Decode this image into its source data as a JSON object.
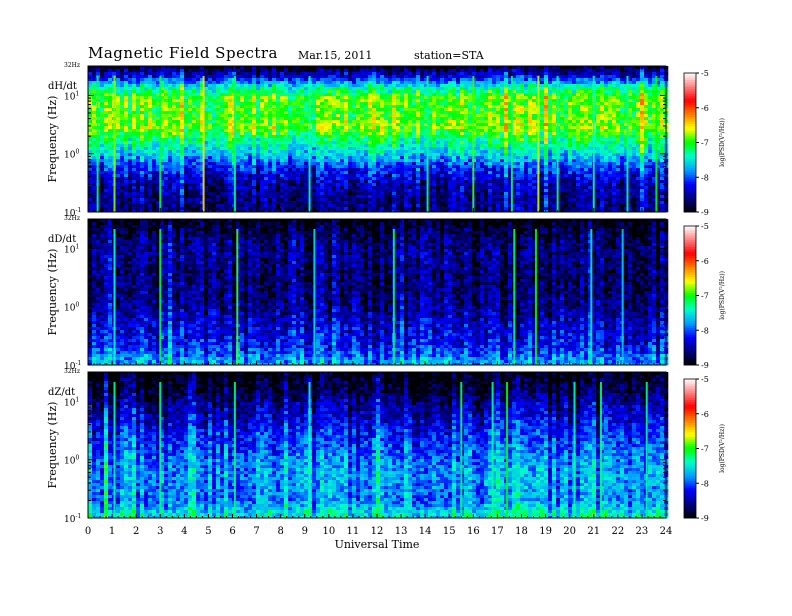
{
  "chart_data": {
    "type": "heatmap",
    "title": "Magnetic Field Spectra",
    "date": "Mar.15, 2011",
    "station": "station=STA",
    "xlabel": "Universal Time",
    "x_ticks": [
      "0",
      "1",
      "2",
      "3",
      "4",
      "5",
      "6",
      "7",
      "8",
      "9",
      "10",
      "11",
      "12",
      "13",
      "14",
      "15",
      "16",
      "17",
      "18",
      "19",
      "20",
      "21",
      "22",
      "23",
      "24"
    ],
    "xlim": [
      0,
      24
    ],
    "ylabel": "Frequency (Hz)",
    "y_scale": "log",
    "ylim": [
      0.1,
      32
    ],
    "y_top_label": "32Hz",
    "y_ticks": [
      {
        "value": 0.1,
        "base": "10",
        "exp": "-1"
      },
      {
        "value": 1,
        "base": "10",
        "exp": "0"
      },
      {
        "value": 10,
        "base": "10",
        "exp": "1"
      }
    ],
    "colorbar": {
      "label": "log(PSD(V²/Hz))",
      "ticks": [
        "-5",
        "-6",
        "-7",
        "-8",
        "-9"
      ],
      "range": [
        -9,
        -5
      ],
      "colors": [
        "#000000",
        "#000080",
        "#0000ff",
        "#00a0ff",
        "#00ffc8",
        "#00ff00",
        "#ffff00",
        "#ff8000",
        "#ff0000",
        "#ff8080",
        "#ffffff"
      ]
    },
    "panels": [
      {
        "name": "dH/dt",
        "bands": [
          {
            "f": 30,
            "level": -8.8
          },
          {
            "f": 20,
            "level": -8.2
          },
          {
            "f": 14,
            "level": -7.4
          },
          {
            "f": 9,
            "level": -6.9
          },
          {
            "f": 5,
            "level": -7.0
          },
          {
            "f": 3,
            "level": -6.8
          },
          {
            "f": 1.8,
            "level": -7.2
          },
          {
            "f": 1,
            "level": -7.6
          },
          {
            "f": 0.6,
            "level": -8.1
          },
          {
            "f": 0.3,
            "level": -8.5
          },
          {
            "f": 0.12,
            "level": -8.6
          }
        ],
        "events": [
          {
            "t": 0.4,
            "level": -7.2
          },
          {
            "t": 1.1,
            "level": -6.8
          },
          {
            "t": 3.0,
            "level": -7.1
          },
          {
            "t": 4.8,
            "level": -6.5
          },
          {
            "t": 6.1,
            "level": -7.2
          },
          {
            "t": 9.2,
            "level": -7.4
          },
          {
            "t": 14.1,
            "level": -7.3
          },
          {
            "t": 16.0,
            "level": -6.9
          },
          {
            "t": 17.6,
            "level": -7.2
          },
          {
            "t": 18.7,
            "level": -6.7
          },
          {
            "t": 19.5,
            "level": -7.3
          },
          {
            "t": 21.0,
            "level": -7.4
          },
          {
            "t": 22.4,
            "level": -7.3
          },
          {
            "t": 23.6,
            "level": -7.0
          }
        ]
      },
      {
        "name": "dD/dt",
        "bands": [
          {
            "f": 30,
            "level": -9.0
          },
          {
            "f": 15,
            "level": -8.7
          },
          {
            "f": 8,
            "level": -8.6
          },
          {
            "f": 3,
            "level": -8.7
          },
          {
            "f": 1,
            "level": -8.6
          },
          {
            "f": 0.5,
            "level": -8.4
          },
          {
            "f": 0.2,
            "level": -8.2
          },
          {
            "f": 0.12,
            "level": -7.8
          }
        ],
        "events": [
          {
            "t": 1.1,
            "level": -7.4
          },
          {
            "t": 3.0,
            "level": -7.1
          },
          {
            "t": 6.2,
            "level": -6.9
          },
          {
            "t": 9.4,
            "level": -7.5
          },
          {
            "t": 12.7,
            "level": -7.2
          },
          {
            "t": 17.7,
            "level": -7.2
          },
          {
            "t": 18.6,
            "level": -7.0
          },
          {
            "t": 20.9,
            "level": -7.5
          },
          {
            "t": 22.2,
            "level": -7.6
          }
        ]
      },
      {
        "name": "dZ/dt",
        "bands": [
          {
            "f": 30,
            "level": -9.0
          },
          {
            "f": 15,
            "level": -8.8
          },
          {
            "f": 8,
            "level": -8.5
          },
          {
            "f": 3,
            "level": -8.2
          },
          {
            "f": 1,
            "level": -7.9
          },
          {
            "f": 0.5,
            "level": -7.8
          },
          {
            "f": 0.2,
            "level": -7.9
          },
          {
            "f": 0.12,
            "level": -7.5
          }
        ],
        "events": [
          {
            "t": 1.1,
            "level": -7.3
          },
          {
            "t": 3.0,
            "level": -7.2
          },
          {
            "t": 6.1,
            "level": -7.2
          },
          {
            "t": 9.2,
            "level": -7.4
          },
          {
            "t": 15.5,
            "level": -7.2
          },
          {
            "t": 16.8,
            "level": -7.3
          },
          {
            "t": 17.4,
            "level": -7.0
          },
          {
            "t": 20.2,
            "level": -7.3
          },
          {
            "t": 21.3,
            "level": -7.2
          },
          {
            "t": 23.2,
            "level": -7.3
          }
        ]
      }
    ]
  }
}
